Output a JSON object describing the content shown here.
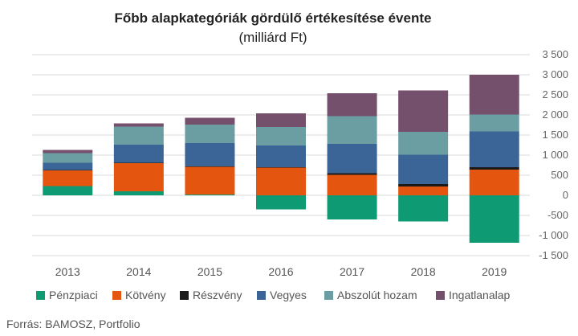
{
  "chart_data": {
    "type": "bar",
    "stacked": true,
    "title": "Főbb alapkategóriák gördülő értékesítése évente",
    "subtitle": "(milliárd Ft)",
    "source": "Forrás: BAMOSZ, Portfolio",
    "categories": [
      "2013",
      "2014",
      "2015",
      "2016",
      "2017",
      "2018",
      "2019"
    ],
    "ylim": [
      -1500,
      3500
    ],
    "yticks": [
      -1500,
      -1000,
      -500,
      0,
      500,
      1000,
      1500,
      2000,
      2500,
      3000,
      3500
    ],
    "ytick_labels": [
      "-1 500",
      "-1 000",
      "-500",
      "0",
      "500",
      "1 000",
      "1 500",
      "2 000",
      "2 500",
      "3 000",
      "3 500"
    ],
    "grid": true,
    "legend_position": "bottom",
    "series": [
      {
        "name": "Pénzpiaci",
        "color": "#0e9a73",
        "values": [
          230,
          100,
          20,
          -350,
          -600,
          -650,
          -1180
        ]
      },
      {
        "name": "Kötvény",
        "color": "#e4550f",
        "values": [
          390,
          700,
          690,
          690,
          510,
          220,
          640
        ]
      },
      {
        "name": "Részvény",
        "color": "#1a1a1a",
        "values": [
          10,
          10,
          10,
          10,
          40,
          60,
          60
        ]
      },
      {
        "name": "Vegyes",
        "color": "#3a6596",
        "values": [
          180,
          450,
          580,
          540,
          730,
          730,
          890
        ]
      },
      {
        "name": "Abszolút hozam",
        "color": "#6a9ea3",
        "values": [
          240,
          450,
          460,
          460,
          690,
          570,
          420
        ]
      },
      {
        "name": "Ingatlanalap",
        "color": "#74506d",
        "values": [
          80,
          80,
          170,
          340,
          570,
          1030,
          990
        ]
      }
    ]
  }
}
